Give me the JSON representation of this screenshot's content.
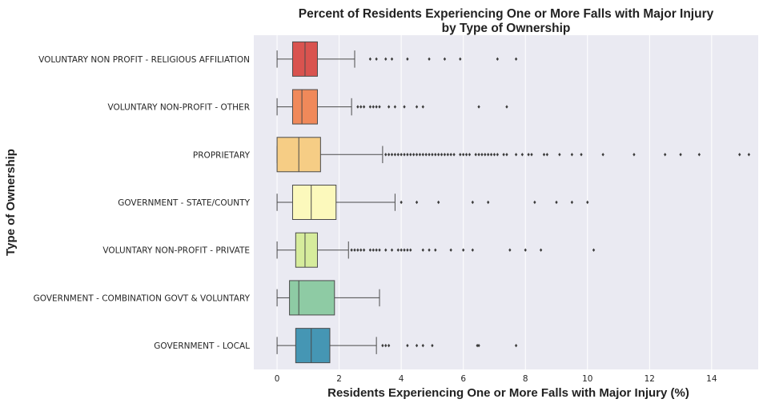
{
  "chart_data": {
    "type": "boxplot",
    "orientation": "horizontal",
    "title_lines": [
      "Percent of Residents Experiencing One or More Falls with Major Injury",
      "by Type of Ownership"
    ],
    "xlabel": "Residents Experiencing One or More Falls with Major Injury (%)",
    "ylabel": "Type of Ownership",
    "xlim": [
      -0.75,
      15.5
    ],
    "xticks": [
      0,
      2,
      4,
      6,
      8,
      10,
      12,
      14
    ],
    "grid": true,
    "background": "#eaeaf2",
    "categories": [
      {
        "name": "VOLUNTARY NON PROFIT - RELIGIOUS AFFILIATION",
        "color": "#d9534f",
        "min": 0,
        "q1": 0.5,
        "median": 0.9,
        "q3": 1.3,
        "max": 2.5,
        "outliers": [
          3.0,
          3.2,
          3.5,
          3.7,
          4.2,
          4.9,
          5.4,
          5.9,
          7.1,
          7.7
        ]
      },
      {
        "name": "VOLUNTARY NON-PROFIT - OTHER",
        "color": "#f0895a",
        "min": 0,
        "q1": 0.5,
        "median": 0.8,
        "q3": 1.3,
        "max": 2.4,
        "outliers": [
          2.6,
          2.7,
          2.8,
          3.0,
          3.1,
          3.2,
          3.3,
          3.6,
          3.8,
          4.1,
          4.5,
          4.7,
          6.5,
          7.4
        ]
      },
      {
        "name": "PROPRIETARY",
        "color": "#f6cd85",
        "min": 0,
        "q1": 0,
        "median": 0.7,
        "q3": 1.4,
        "max": 3.4,
        "outliers": [
          3.5,
          3.6,
          3.7,
          3.8,
          3.9,
          4.0,
          4.1,
          4.2,
          4.3,
          4.4,
          4.5,
          4.6,
          4.7,
          4.8,
          4.9,
          5.0,
          5.1,
          5.2,
          5.3,
          5.4,
          5.5,
          5.6,
          5.7,
          5.9,
          6.0,
          6.1,
          6.2,
          6.4,
          6.5,
          6.6,
          6.7,
          6.8,
          6.9,
          7.0,
          7.1,
          7.3,
          7.4,
          7.7,
          7.9,
          8.1,
          8.2,
          8.6,
          8.7,
          9.1,
          9.5,
          9.8,
          10.5,
          11.5,
          12.5,
          13.0,
          13.6,
          14.9,
          15.2
        ]
      },
      {
        "name": "GOVERNMENT - STATE/COUNTY",
        "color": "#fcf9bc",
        "min": 0,
        "q1": 0.5,
        "median": 1.1,
        "q3": 1.9,
        "max": 3.8,
        "outliers": [
          4.0,
          4.5,
          5.2,
          6.3,
          6.8,
          8.3,
          9.0,
          9.5,
          10.0
        ]
      },
      {
        "name": "VOLUNTARY NON-PROFIT - PRIVATE",
        "color": "#d6ec9c",
        "min": 0,
        "q1": 0.6,
        "median": 0.9,
        "q3": 1.3,
        "max": 2.3,
        "outliers": [
          2.4,
          2.5,
          2.6,
          2.7,
          2.8,
          3.0,
          3.1,
          3.2,
          3.3,
          3.5,
          3.7,
          3.9,
          4.0,
          4.1,
          4.2,
          4.3,
          4.7,
          4.9,
          5.1,
          5.6,
          6.0,
          6.3,
          7.5,
          8.0,
          8.5,
          10.2
        ]
      },
      {
        "name": "GOVERNMENT - COMBINATION GOVT & VOLUNTARY",
        "color": "#8ecba4",
        "min": 0,
        "q1": 0.4,
        "median": 0.7,
        "q3": 1.85,
        "max": 3.3,
        "outliers": []
      },
      {
        "name": "GOVERNMENT - LOCAL",
        "color": "#4596b4",
        "min": 0,
        "q1": 0.6,
        "median": 1.1,
        "q3": 1.7,
        "max": 3.2,
        "outliers": [
          3.4,
          3.5,
          3.6,
          4.2,
          4.5,
          4.7,
          5.0,
          6.45,
          6.5,
          7.7
        ]
      }
    ]
  }
}
